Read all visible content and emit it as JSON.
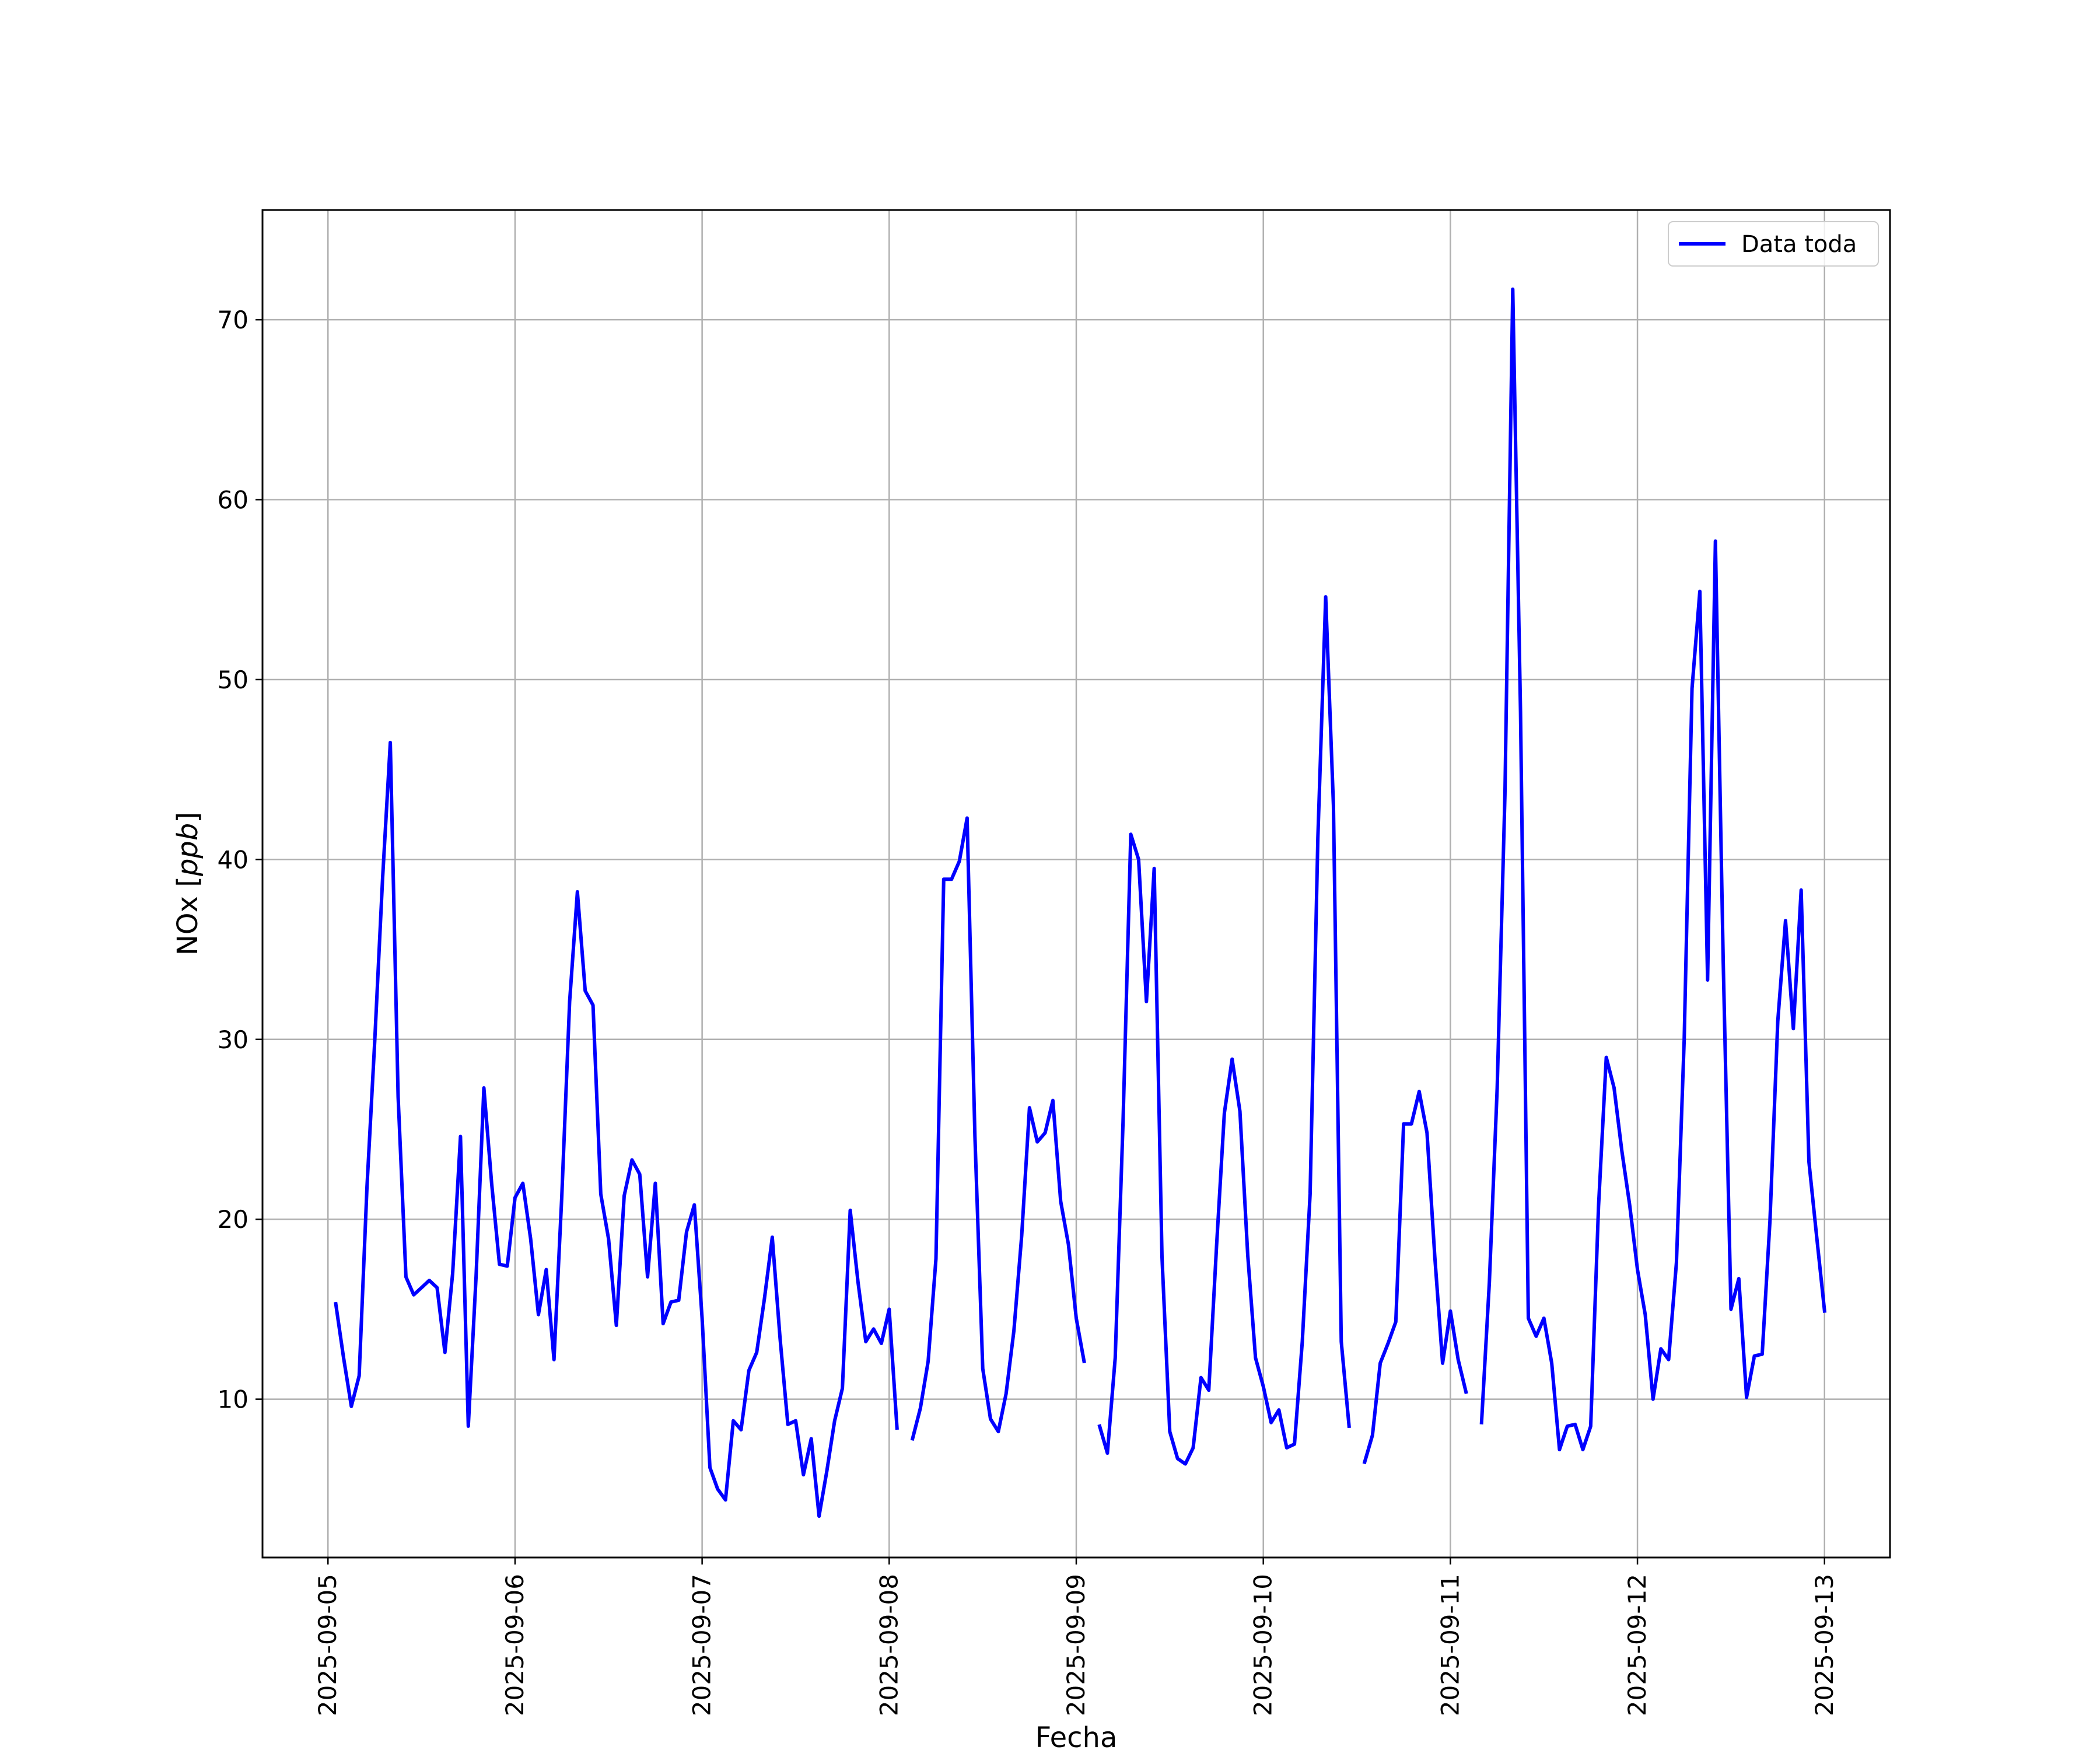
{
  "chart_data": {
    "type": "line",
    "title": "",
    "xlabel": "Fecha",
    "ylabel": "NOx [ppb]",
    "ylabel_parts": {
      "prefix": "NOx [",
      "unit": "ppb",
      "suffix": "]"
    },
    "x_ticks": [
      "2025-09-05",
      "2025-09-06",
      "2025-09-07",
      "2025-09-08",
      "2025-09-09",
      "2025-09-10",
      "2025-09-11",
      "2025-09-12",
      "2025-09-13"
    ],
    "y_ticks": [
      10,
      20,
      30,
      40,
      50,
      60,
      70
    ],
    "xlim": [
      "2025-09-04 15:36",
      "2025-09-13 08:24"
    ],
    "ylim": [
      1.2,
      76.1
    ],
    "grid": true,
    "legend": "top-right",
    "colors": {
      "line": "#0000ff",
      "grid": "#b0b0b0"
    },
    "series": [
      {
        "name": "Data toda",
        "points": [
          [
            "2025-09-05 01:00",
            15.3
          ],
          [
            "2025-09-05 02:00",
            12.3
          ],
          [
            "2025-09-05 03:00",
            9.6
          ],
          [
            "2025-09-05 04:00",
            11.3
          ],
          [
            "2025-09-05 05:00",
            21.8
          ],
          [
            "2025-09-05 06:00",
            29.9
          ],
          [
            "2025-09-05 07:00",
            38.9
          ],
          [
            "2025-09-05 08:00",
            46.5
          ],
          [
            "2025-09-05 09:00",
            26.8
          ],
          [
            "2025-09-05 10:00",
            16.8
          ],
          [
            "2025-09-05 11:00",
            15.8
          ],
          [
            "2025-09-05 12:00",
            16.2
          ],
          [
            "2025-09-05 13:00",
            16.6
          ],
          [
            "2025-09-05 14:00",
            16.2
          ],
          [
            "2025-09-05 15:00",
            12.6
          ],
          [
            "2025-09-05 16:00",
            17.0
          ],
          [
            "2025-09-05 17:00",
            24.6
          ],
          [
            "2025-09-05 18:00",
            8.5
          ],
          [
            "2025-09-05 19:00",
            16.8
          ],
          [
            "2025-09-05 20:00",
            27.3
          ],
          [
            "2025-09-05 21:00",
            22.0
          ],
          [
            "2025-09-05 22:00",
            17.5
          ],
          [
            "2025-09-05 23:00",
            17.4
          ],
          [
            "2025-09-06 00:00",
            21.2
          ],
          [
            "2025-09-06 01:00",
            22.0
          ],
          [
            "2025-09-06 02:00",
            18.9
          ],
          [
            "2025-09-06 03:00",
            14.7
          ],
          [
            "2025-09-06 04:00",
            17.2
          ],
          [
            "2025-09-06 05:00",
            12.2
          ],
          [
            "2025-09-06 06:00",
            21.3
          ],
          [
            "2025-09-06 07:00",
            32.1
          ],
          [
            "2025-09-06 08:00",
            38.2
          ],
          [
            "2025-09-06 09:00",
            32.7
          ],
          [
            "2025-09-06 10:00",
            31.9
          ],
          [
            "2025-09-06 11:00",
            21.4
          ],
          [
            "2025-09-06 12:00",
            18.9
          ],
          [
            "2025-09-06 13:00",
            14.1
          ],
          [
            "2025-09-06 14:00",
            21.3
          ],
          [
            "2025-09-06 15:00",
            23.3
          ],
          [
            "2025-09-06 16:00",
            22.5
          ],
          [
            "2025-09-06 17:00",
            16.8
          ],
          [
            "2025-09-06 18:00",
            22.0
          ],
          [
            "2025-09-06 19:00",
            14.2
          ],
          [
            "2025-09-06 20:00",
            15.4
          ],
          [
            "2025-09-06 21:00",
            15.5
          ],
          [
            "2025-09-06 22:00",
            19.3
          ],
          [
            "2025-09-06 23:00",
            20.8
          ],
          [
            "2025-09-07 00:00",
            14.5
          ],
          [
            "2025-09-07 01:00",
            6.2
          ],
          [
            "2025-09-07 02:00",
            5.0
          ],
          [
            "2025-09-07 03:00",
            4.4
          ],
          [
            "2025-09-07 04:00",
            8.8
          ],
          [
            "2025-09-07 05:00",
            8.3
          ],
          [
            "2025-09-07 06:00",
            11.6
          ],
          [
            "2025-09-07 07:00",
            12.6
          ],
          [
            "2025-09-07 08:00",
            15.6
          ],
          [
            "2025-09-07 09:00",
            19.0
          ],
          [
            "2025-09-07 10:00",
            13.4
          ],
          [
            "2025-09-07 11:00",
            8.6
          ],
          [
            "2025-09-07 12:00",
            8.8
          ],
          [
            "2025-09-07 13:00",
            5.8
          ],
          [
            "2025-09-07 14:00",
            7.8
          ],
          [
            "2025-09-07 15:00",
            3.5
          ],
          [
            "2025-09-07 16:00",
            6.0
          ],
          [
            "2025-09-07 17:00",
            8.8
          ],
          [
            "2025-09-07 18:00",
            10.6
          ],
          [
            "2025-09-07 19:00",
            20.5
          ],
          [
            "2025-09-07 20:00",
            16.5
          ],
          [
            "2025-09-07 21:00",
            13.2
          ],
          [
            "2025-09-07 22:00",
            13.9
          ],
          [
            "2025-09-07 23:00",
            13.1
          ],
          [
            "2025-09-08 00:00",
            15.0
          ],
          [
            "2025-09-08 01:00",
            8.4
          ],
          [
            "2025-09-08 02:00",
            null
          ],
          [
            "2025-09-08 03:00",
            7.8
          ],
          [
            "2025-09-08 04:00",
            9.5
          ],
          [
            "2025-09-08 05:00",
            12.1
          ],
          [
            "2025-09-08 06:00",
            17.8
          ],
          [
            "2025-09-08 07:00",
            38.9
          ],
          [
            "2025-09-08 08:00",
            38.9
          ],
          [
            "2025-09-08 09:00",
            39.9
          ],
          [
            "2025-09-08 10:00",
            42.3
          ],
          [
            "2025-09-08 11:00",
            24.6
          ],
          [
            "2025-09-08 12:00",
            11.7
          ],
          [
            "2025-09-08 13:00",
            8.9
          ],
          [
            "2025-09-08 14:00",
            8.2
          ],
          [
            "2025-09-08 15:00",
            10.3
          ],
          [
            "2025-09-08 16:00",
            13.8
          ],
          [
            "2025-09-08 17:00",
            19.1
          ],
          [
            "2025-09-08 18:00",
            26.2
          ],
          [
            "2025-09-08 19:00",
            24.3
          ],
          [
            "2025-09-08 20:00",
            24.8
          ],
          [
            "2025-09-08 21:00",
            26.6
          ],
          [
            "2025-09-08 22:00",
            21.0
          ],
          [
            "2025-09-08 23:00",
            18.6
          ],
          [
            "2025-09-09 00:00",
            14.5
          ],
          [
            "2025-09-09 01:00",
            12.1
          ],
          [
            "2025-09-09 02:00",
            null
          ],
          [
            "2025-09-09 03:00",
            8.5
          ],
          [
            "2025-09-09 04:00",
            7.0
          ],
          [
            "2025-09-09 05:00",
            12.3
          ],
          [
            "2025-09-09 06:00",
            25.4
          ],
          [
            "2025-09-09 07:00",
            41.4
          ],
          [
            "2025-09-09 08:00",
            40.0
          ],
          [
            "2025-09-09 09:00",
            32.1
          ],
          [
            "2025-09-09 10:00",
            39.5
          ],
          [
            "2025-09-09 11:00",
            17.9
          ],
          [
            "2025-09-09 12:00",
            8.2
          ],
          [
            "2025-09-09 13:00",
            6.7
          ],
          [
            "2025-09-09 14:00",
            6.4
          ],
          [
            "2025-09-09 15:00",
            7.3
          ],
          [
            "2025-09-09 16:00",
            11.2
          ],
          [
            "2025-09-09 17:00",
            10.5
          ],
          [
            "2025-09-09 18:00",
            18.5
          ],
          [
            "2025-09-09 19:00",
            25.9
          ],
          [
            "2025-09-09 20:00",
            28.9
          ],
          [
            "2025-09-09 21:00",
            26.0
          ],
          [
            "2025-09-09 22:00",
            18.0
          ],
          [
            "2025-09-09 23:00",
            12.3
          ],
          [
            "2025-09-10 00:00",
            10.7
          ],
          [
            "2025-09-10 01:00",
            8.7
          ],
          [
            "2025-09-10 02:00",
            9.4
          ],
          [
            "2025-09-10 03:00",
            7.3
          ],
          [
            "2025-09-10 04:00",
            7.5
          ],
          [
            "2025-09-10 05:00",
            13.2
          ],
          [
            "2025-09-10 06:00",
            21.4
          ],
          [
            "2025-09-10 07:00",
            41.2
          ],
          [
            "2025-09-10 08:00",
            54.6
          ],
          [
            "2025-09-10 09:00",
            43.0
          ],
          [
            "2025-09-10 10:00",
            13.2
          ],
          [
            "2025-09-10 11:00",
            8.5
          ],
          [
            "2025-09-10 12:00",
            null
          ],
          [
            "2025-09-10 13:00",
            6.5
          ],
          [
            "2025-09-10 14:00",
            8.0
          ],
          [
            "2025-09-10 15:00",
            12.0
          ],
          [
            "2025-09-10 16:00",
            13.1
          ],
          [
            "2025-09-10 17:00",
            14.3
          ],
          [
            "2025-09-10 18:00",
            25.3
          ],
          [
            "2025-09-10 19:00",
            25.3
          ],
          [
            "2025-09-10 20:00",
            27.1
          ],
          [
            "2025-09-10 21:00",
            24.8
          ],
          [
            "2025-09-10 22:00",
            17.9
          ],
          [
            "2025-09-10 23:00",
            12.0
          ],
          [
            "2025-09-11 00:00",
            14.9
          ],
          [
            "2025-09-11 01:00",
            12.2
          ],
          [
            "2025-09-11 02:00",
            10.4
          ],
          [
            "2025-09-11 03:00",
            null
          ],
          [
            "2025-09-11 04:00",
            8.7
          ],
          [
            "2025-09-11 05:00",
            16.5
          ],
          [
            "2025-09-11 06:00",
            27.3
          ],
          [
            "2025-09-11 07:00",
            43.6
          ],
          [
            "2025-09-11 08:00",
            71.7
          ],
          [
            "2025-09-11 09:00",
            48.2
          ],
          [
            "2025-09-11 10:00",
            14.5
          ],
          [
            "2025-09-11 11:00",
            13.5
          ],
          [
            "2025-09-11 12:00",
            14.5
          ],
          [
            "2025-09-11 13:00",
            12.0
          ],
          [
            "2025-09-11 14:00",
            7.2
          ],
          [
            "2025-09-11 15:00",
            8.5
          ],
          [
            "2025-09-11 16:00",
            8.6
          ],
          [
            "2025-09-11 17:00",
            7.2
          ],
          [
            "2025-09-11 18:00",
            8.5
          ],
          [
            "2025-09-11 19:00",
            20.7
          ],
          [
            "2025-09-11 20:00",
            29.0
          ],
          [
            "2025-09-11 21:00",
            27.3
          ],
          [
            "2025-09-11 22:00",
            23.8
          ],
          [
            "2025-09-11 23:00",
            20.8
          ],
          [
            "2025-09-12 00:00",
            17.2
          ],
          [
            "2025-09-12 01:00",
            14.7
          ],
          [
            "2025-09-12 02:00",
            10.0
          ],
          [
            "2025-09-12 03:00",
            12.8
          ],
          [
            "2025-09-12 04:00",
            12.2
          ],
          [
            "2025-09-12 05:00",
            17.6
          ],
          [
            "2025-09-12 06:00",
            30.0
          ],
          [
            "2025-09-12 07:00",
            49.5
          ],
          [
            "2025-09-12 08:00",
            54.9
          ],
          [
            "2025-09-12 09:00",
            33.3
          ],
          [
            "2025-09-12 10:00",
            57.7
          ],
          [
            "2025-09-12 11:00",
            34.3
          ],
          [
            "2025-09-12 12:00",
            15.0
          ],
          [
            "2025-09-12 13:00",
            16.7
          ],
          [
            "2025-09-12 14:00",
            10.1
          ],
          [
            "2025-09-12 15:00",
            12.4
          ],
          [
            "2025-09-12 16:00",
            12.5
          ],
          [
            "2025-09-12 17:00",
            19.9
          ],
          [
            "2025-09-12 18:00",
            31.0
          ],
          [
            "2025-09-12 19:00",
            36.6
          ],
          [
            "2025-09-12 20:00",
            30.6
          ],
          [
            "2025-09-12 21:00",
            38.3
          ],
          [
            "2025-09-12 22:00",
            23.2
          ],
          [
            "2025-09-12 23:00",
            19.0
          ],
          [
            "2025-09-13 00:00",
            14.9
          ]
        ]
      }
    ]
  }
}
